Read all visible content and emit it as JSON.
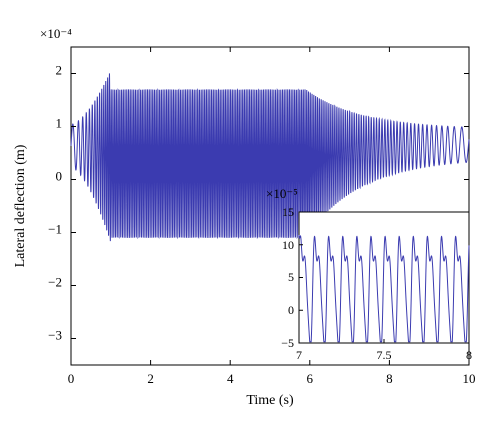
{
  "chart_data": [
    {
      "type": "line",
      "title": "",
      "xlabel": "Time (s)",
      "ylabel": "Lateral deflection (m)",
      "y_exponent_label": "×10⁻⁴",
      "xlim": [
        0,
        10
      ],
      "ylim": [
        -3.5,
        2.5
      ],
      "xticks": [
        "0",
        "2",
        "4",
        "6",
        "8",
        "10"
      ],
      "yticks": [
        "−3",
        "−2",
        "−1",
        "0",
        "1",
        "2"
      ],
      "grid": false,
      "series_color": "#3b3bb0",
      "signal": {
        "description_values": {
          "initial_segment": {
            "t": [
              0,
              1
            ],
            "mean": 0.7,
            "amplitude": 0.4
          },
          "saturated_segment": {
            "t": [
              1,
              5.9
            ],
            "max": 1.7,
            "min": -1.1,
            "frequency_hz": 23
          },
          "decay_segment": {
            "t": [
              5.9,
              10
            ],
            "end_mean": 0.7,
            "end_amplitude": 0.3
          }
        }
      }
    },
    {
      "type": "line",
      "title": "",
      "role": "inset",
      "y_exponent_label": "×10⁻⁵",
      "xlim": [
        7,
        8
      ],
      "ylim": [
        -5,
        15
      ],
      "xticks": [
        "7",
        "7.5",
        "8"
      ],
      "yticks": [
        "−5",
        "0",
        "5",
        "10",
        "15"
      ],
      "series_color": "#3b3bb0",
      "signal": {
        "period_s": 0.083,
        "max": 11.5,
        "min": -4
      }
    }
  ]
}
